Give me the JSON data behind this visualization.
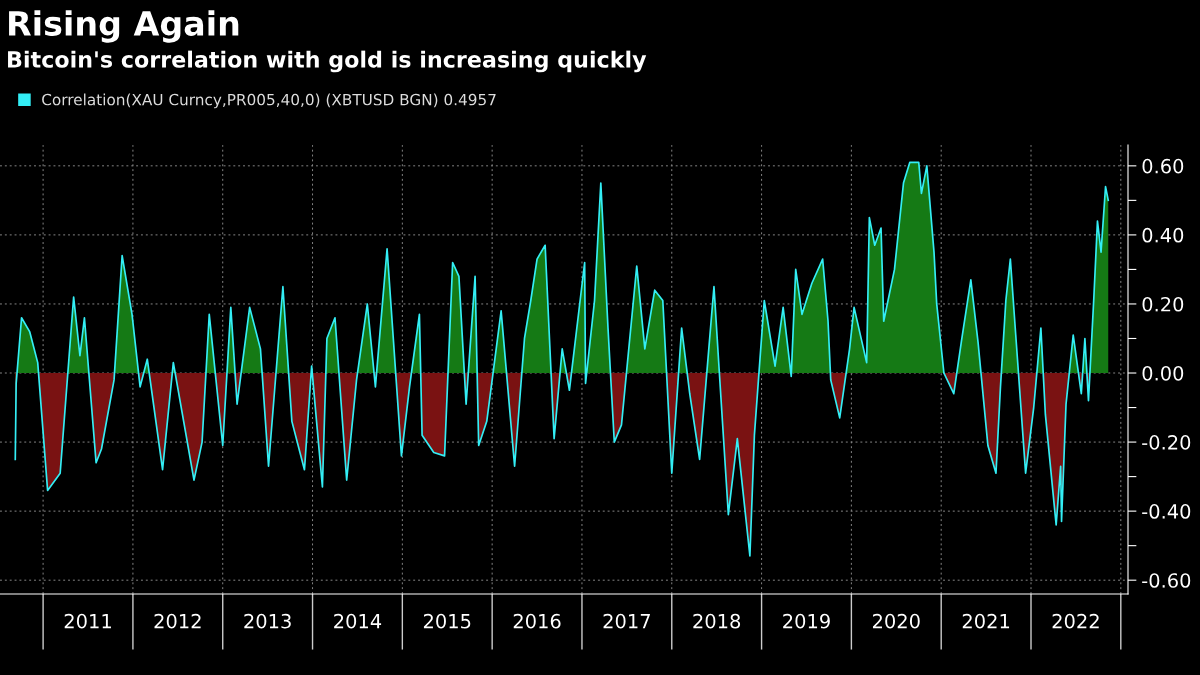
{
  "chart_data": {
    "type": "area",
    "title": "Rising Again",
    "subtitle": "Bitcoin's correlation with gold is increasing quickly",
    "x": [
      2010.69,
      2010.7,
      2010.76,
      2010.85,
      2010.94,
      2011.05,
      2011.19,
      2011.34,
      2011.41,
      2011.46,
      2011.59,
      2011.65,
      2011.79,
      2011.88,
      2011.99,
      2012.08,
      2012.16,
      2012.33,
      2012.45,
      2012.68,
      2012.77,
      2012.85,
      2013.0,
      2013.09,
      2013.16,
      2013.3,
      2013.42,
      2013.51,
      2013.67,
      2013.77,
      2013.91,
      2013.99,
      2014.11,
      2014.16,
      2014.25,
      2014.38,
      2014.49,
      2014.61,
      2014.7,
      2014.83,
      2014.99,
      2015.08,
      2015.19,
      2015.22,
      2015.35,
      2015.47,
      2015.56,
      2015.63,
      2015.71,
      2015.81,
      2015.85,
      2015.94,
      2016.1,
      2016.25,
      2016.36,
      2016.43,
      2016.5,
      2016.59,
      2016.69,
      2016.78,
      2016.86,
      2017.03,
      2017.04,
      2017.14,
      2017.21,
      2017.29,
      2017.36,
      2017.44,
      2017.61,
      2017.7,
      2017.81,
      2017.9,
      2018.0,
      2018.11,
      2018.2,
      2018.31,
      2018.47,
      2018.53,
      2018.63,
      2018.73,
      2018.87,
      2018.92,
      2019.03,
      2019.15,
      2019.24,
      2019.33,
      2019.38,
      2019.45,
      2019.56,
      2019.68,
      2019.74,
      2019.77,
      2019.87,
      2019.98,
      2020.03,
      2020.17,
      2020.2,
      2020.26,
      2020.33,
      2020.36,
      2020.48,
      2020.58,
      2020.65,
      2020.75,
      2020.78,
      2020.84,
      2020.92,
      2020.95,
      2021.03,
      2021.14,
      2021.23,
      2021.33,
      2021.41,
      2021.52,
      2021.61,
      2021.66,
      2021.72,
      2021.77,
      2021.83,
      2021.94,
      2022.03,
      2022.11,
      2022.16,
      2022.28,
      2022.33,
      2022.34,
      2022.39,
      2022.47,
      2022.56,
      2022.6,
      2022.64,
      2022.7,
      2022.74,
      2022.78,
      2022.83,
      2022.86
    ],
    "series": [
      {
        "name": "Correlation(XAU Curncy,PR005,40,0) (XBTUSD BGN) 0.4957",
        "color": "#33eef5",
        "values": [
          -0.25,
          -0.03,
          0.16,
          0.12,
          0.03,
          -0.34,
          -0.29,
          0.22,
          0.05,
          0.16,
          -0.26,
          -0.22,
          -0.02,
          0.34,
          0.17,
          -0.04,
          0.04,
          -0.28,
          0.03,
          -0.31,
          -0.2,
          0.17,
          -0.21,
          0.19,
          -0.09,
          0.19,
          0.07,
          -0.27,
          0.25,
          -0.14,
          -0.28,
          0.02,
          -0.33,
          0.1,
          0.16,
          -0.31,
          -0.02,
          0.2,
          -0.04,
          0.36,
          -0.24,
          -0.04,
          0.17,
          -0.18,
          -0.23,
          -0.24,
          0.32,
          0.28,
          -0.09,
          0.28,
          -0.21,
          -0.14,
          0.18,
          -0.27,
          0.1,
          0.21,
          0.33,
          0.37,
          -0.19,
          0.07,
          -0.05,
          0.32,
          -0.03,
          0.21,
          0.55,
          0.13,
          -0.2,
          -0.15,
          0.31,
          0.07,
          0.24,
          0.21,
          -0.29,
          0.13,
          -0.06,
          -0.25,
          0.25,
          0.0,
          -0.41,
          -0.19,
          -0.53,
          -0.18,
          0.21,
          0.02,
          0.19,
          -0.01,
          0.3,
          0.17,
          0.26,
          0.33,
          0.15,
          -0.02,
          -0.13,
          0.07,
          0.19,
          0.03,
          0.45,
          0.37,
          0.42,
          0.15,
          0.3,
          0.55,
          0.61,
          0.61,
          0.52,
          0.6,
          0.35,
          0.2,
          0.0,
          -0.06,
          0.1,
          0.27,
          0.09,
          -0.21,
          -0.29,
          -0.04,
          0.21,
          0.33,
          0.11,
          -0.29,
          -0.1,
          0.13,
          -0.12,
          -0.44,
          -0.27,
          -0.43,
          -0.09,
          0.11,
          -0.06,
          0.1,
          -0.08,
          0.22,
          0.44,
          0.35,
          0.54,
          0.5
        ]
      }
    ],
    "colors": [
      "#157a15",
      "#7a1212"
    ],
    "xlim": [
      2010.52,
      2023.08
    ],
    "xticks": [
      {
        "value": 2011,
        "label": null
      },
      {
        "value": 2012,
        "label": null
      },
      {
        "value": 2013,
        "label": null
      },
      {
        "value": 2014,
        "label": null
      },
      {
        "value": 2015,
        "label": null
      },
      {
        "value": 2016,
        "label": null
      },
      {
        "value": 2017,
        "label": null
      },
      {
        "value": 2018,
        "label": null
      },
      {
        "value": 2019,
        "label": null
      },
      {
        "value": 2020,
        "label": null
      },
      {
        "value": 2021,
        "label": null
      },
      {
        "value": 2022,
        "label": null
      },
      {
        "value": 2023,
        "label": null
      },
      {
        "value": 2011.5,
        "label": "2011"
      },
      {
        "value": 2012.5,
        "label": "2012"
      },
      {
        "value": 2013.5,
        "label": "2013"
      },
      {
        "value": 2014.5,
        "label": "2014"
      },
      {
        "value": 2015.5,
        "label": "2015"
      },
      {
        "value": 2016.5,
        "label": "2016"
      },
      {
        "value": 2017.5,
        "label": "2017"
      },
      {
        "value": 2018.5,
        "label": "2018"
      },
      {
        "value": 2019.5,
        "label": "2019"
      },
      {
        "value": 2020.5,
        "label": "2020"
      },
      {
        "value": 2021.5,
        "label": "2021"
      },
      {
        "value": 2022.5,
        "label": "2022"
      }
    ],
    "ylim": [
      -0.64,
      0.66
    ],
    "yticks": [
      {
        "value": -0.6,
        "label": "-0.60"
      },
      {
        "value": -0.5,
        "label": null
      },
      {
        "value": -0.4,
        "label": "-0.40"
      },
      {
        "value": -0.3,
        "label": null
      },
      {
        "value": -0.2,
        "label": "-0.20"
      },
      {
        "value": -0.1,
        "label": null
      },
      {
        "value": 0,
        "label": "0.00"
      },
      {
        "value": 0.1,
        "label": null
      },
      {
        "value": 0.2,
        "label": "0.20"
      },
      {
        "value": 0.3,
        "label": null
      },
      {
        "value": 0.4,
        "label": "0.40"
      },
      {
        "value": 0.5,
        "label": null
      },
      {
        "value": 0.6,
        "label": "0.60"
      }
    ],
    "grid": true,
    "legend": "top left"
  }
}
